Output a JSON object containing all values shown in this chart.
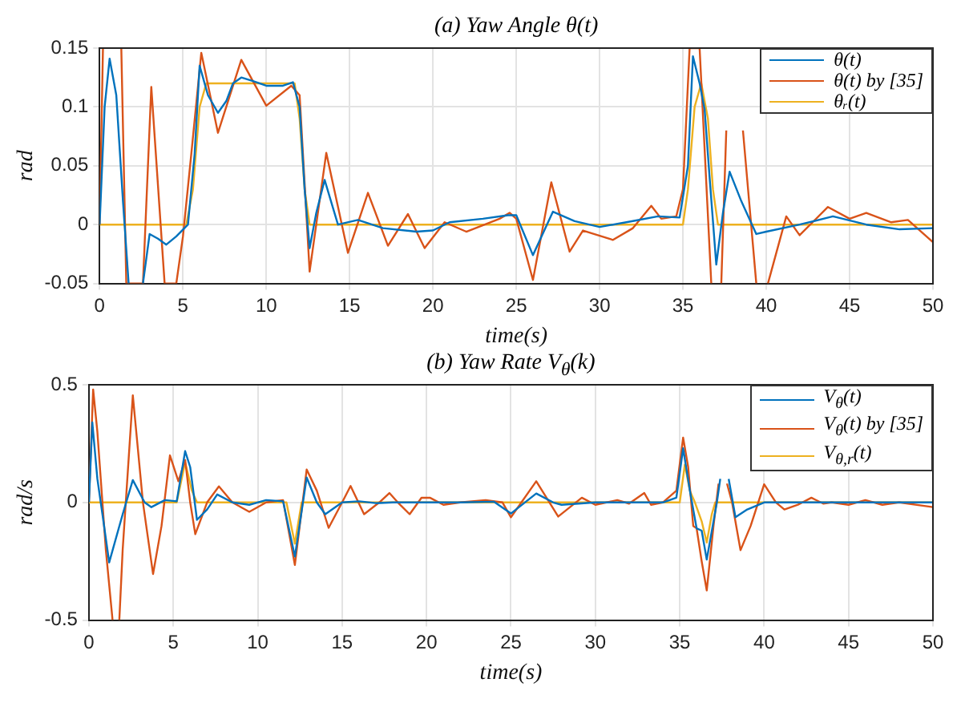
{
  "chart_data": [
    {
      "type": "line",
      "title": "(a) Yaw Angle θ(t)",
      "xlabel": "time(s)",
      "ylabel": "rad",
      "xlim": [
        0,
        50
      ],
      "xticks": [
        0,
        5,
        10,
        15,
        20,
        25,
        30,
        35,
        40,
        45,
        50
      ],
      "ylim": [
        -0.05,
        0.15
      ],
      "yticks": [
        -0.05,
        0,
        0.05,
        0.1,
        0.15
      ],
      "grid": true,
      "legend": "top right",
      "series": [
        {
          "name": "θ(t)",
          "color": "#0072bd",
          "x": [
            0,
            0.3,
            0.6,
            1.0,
            1.4,
            1.74,
            2.0,
            2.6,
            3.0,
            3.5,
            4.0,
            4.6,
            5.3,
            5.7,
            6.0,
            6.5,
            7.1,
            7.6,
            8.0,
            8.5,
            9.2,
            10.0,
            11.0,
            11.6,
            12.0,
            12.3,
            12.6,
            13.0,
            13.5,
            14.3,
            15.5,
            17.0,
            19.0,
            20.0,
            21.0,
            23.0,
            24.5,
            25.0,
            26.0,
            27.2,
            28.5,
            30.0,
            32.0,
            33.5,
            34.8,
            35.3,
            35.6,
            36.0,
            36.3,
            36.6,
            37.0,
            37.4,
            37.8,
            38.5,
            39.4,
            40.0,
            42.0,
            44.0,
            46.0,
            48.0,
            50.0
          ],
          "values": [
            0,
            0.1,
            0.141,
            0.11,
            0.02,
            -0.05,
            null,
            -0.05,
            -0.008,
            -0.012,
            -0.017,
            -0.01,
            0,
            0.06,
            0.135,
            0.11,
            0.095,
            0.105,
            0.12,
            0.125,
            0.122,
            0.118,
            0.118,
            0.121,
            0.1,
            0.03,
            -0.02,
            0.01,
            0.038,
            0,
            0.004,
            -0.003,
            -0.006,
            -0.005,
            0.002,
            0.005,
            0.008,
            0.008,
            -0.026,
            0.011,
            0.003,
            -0.002,
            0.003,
            0.007,
            0.006,
            0.05,
            0.143,
            0.12,
            0.098,
            0.04,
            -0.034,
            0.01,
            0.045,
            0.02,
            -0.008,
            -0.006,
            0,
            0.007,
            0,
            -0.004,
            -0.003
          ]
        },
        {
          "name": "θ(t) by [35]",
          "color": "#d95319",
          "x": [
            0,
            0.2,
            0.25,
            1.3,
            1.6,
            2.6,
            3.1,
            3.9,
            4.6,
            5.0,
            5.5,
            6.1,
            7.1,
            8.5,
            10.0,
            11.5,
            12.0,
            12.6,
            13.6,
            14.9,
            16.1,
            17.3,
            18.5,
            19.5,
            20.7,
            22.0,
            24.0,
            24.6,
            25.0,
            26.0,
            27.1,
            28.2,
            29.0,
            30.8,
            32.0,
            33.1,
            33.7,
            34.6,
            35.0,
            35.4,
            36.0,
            36.7,
            37.0,
            37.3,
            37.6,
            38.0,
            38.6,
            39.4,
            40.0,
            40.1,
            41.2,
            42.0,
            43.7,
            45.0,
            46.0,
            47.5,
            48.5,
            50.0
          ],
          "values": [
            0,
            0.15,
            null,
            0.15,
            -0.05,
            -0.05,
            0.117,
            -0.05,
            -0.05,
            -0.01,
            0.06,
            0.146,
            0.078,
            0.14,
            0.101,
            0.118,
            0.11,
            -0.04,
            0.061,
            -0.024,
            0.027,
            -0.018,
            0.009,
            -0.02,
            0.002,
            -0.006,
            0.005,
            0.01,
            0.005,
            -0.047,
            0.036,
            -0.023,
            -0.005,
            -0.013,
            -0.003,
            0.016,
            0.005,
            0.007,
            0.03,
            0.15,
            0.15,
            -0.05,
            null,
            -0.05,
            0.08,
            null,
            0.08,
            -0.05,
            null,
            -0.05,
            0.007,
            -0.009,
            0.015,
            0.005,
            0.01,
            0.002,
            0.004,
            -0.015
          ]
        },
        {
          "name": "θᵣ(t)",
          "color": "#edb120",
          "x": [
            0,
            5.2,
            5.6,
            6.0,
            6.4,
            11.7,
            12.0,
            12.3,
            12.6,
            35.0,
            35.3,
            35.7,
            36.1,
            36.5,
            36.8,
            37.1,
            50.0
          ],
          "values": [
            0,
            0,
            0.03,
            0.1,
            0.12,
            0.12,
            0.09,
            0.03,
            0,
            0,
            0.03,
            0.1,
            0.12,
            0.09,
            0.03,
            0,
            0
          ]
        }
      ]
    },
    {
      "type": "line",
      "title": "(b) Yaw Rate V$_{θ}$(k)",
      "xlabel": "time(s)",
      "ylabel": "rad/s",
      "xlim": [
        0,
        50
      ],
      "xticks": [
        0,
        5,
        10,
        15,
        20,
        25,
        30,
        35,
        40,
        45,
        50
      ],
      "ylim": [
        -0.5,
        0.5
      ],
      "yticks": [
        -0.5,
        0,
        0.5
      ],
      "grid": true,
      "legend": "top right",
      "series": [
        {
          "name": "V$_{θ}$(t)",
          "color": "#0072bd",
          "x": [
            0,
            0.2,
            0.5,
            0.8,
            1.2,
            2.0,
            2.6,
            3.3,
            3.7,
            4.5,
            5.2,
            5.7,
            6.0,
            6.4,
            7.0,
            7.6,
            8.5,
            9.5,
            10.5,
            11.5,
            12.2,
            12.9,
            13.5,
            14.0,
            15.0,
            16.0,
            17.0,
            18.0,
            20.0,
            22.0,
            24.0,
            25.0,
            26.5,
            27.5,
            28.0,
            30.0,
            32.0,
            34.0,
            34.8,
            35.2,
            35.6,
            36.0,
            36.3,
            36.6,
            37.2,
            37.4,
            37.6,
            37.9,
            38.3,
            39.0,
            40.0,
            42.0,
            50.0
          ],
          "values": [
            0,
            0.34,
            0.1,
            -0.05,
            -0.255,
            -0.05,
            0.095,
            0,
            -0.02,
            0.01,
            0.005,
            0.218,
            0.15,
            -0.074,
            -0.03,
            0.034,
            0,
            -0.01,
            0.01,
            0.005,
            -0.23,
            0.106,
            0,
            -0.05,
            0,
            0.005,
            -0.003,
            0,
            0,
            0,
            0.003,
            -0.047,
            0.038,
            0,
            -0.01,
            0,
            0,
            0,
            0.02,
            0.23,
            0.05,
            -0.11,
            -0.12,
            -0.243,
            0,
            0.1,
            null,
            0.1,
            -0.063,
            -0.03,
            0,
            0,
            0
          ]
        },
        {
          "name": "V$_{θ}$(t) by [35]",
          "color": "#d95319",
          "x": [
            0,
            0.25,
            0.5,
            1.0,
            1.4,
            1.5,
            1.8,
            2.0,
            2.6,
            3.2,
            3.8,
            4.3,
            4.8,
            5.3,
            5.7,
            6.0,
            6.3,
            7.0,
            7.7,
            8.5,
            9.5,
            10.5,
            11.5,
            12.2,
            12.9,
            13.5,
            14.2,
            15.0,
            15.5,
            16.3,
            17.2,
            17.8,
            18.3,
            19.0,
            19.7,
            20.2,
            21.0,
            22.0,
            23.5,
            24.5,
            25.0,
            26.5,
            27.8,
            29.2,
            30.0,
            31.3,
            32.0,
            32.9,
            33.3,
            34.0,
            34.8,
            35.2,
            35.5,
            35.8,
            36.0,
            36.3,
            36.6,
            37.0,
            37.3,
            37.5,
            37.8,
            38.1,
            38.6,
            39.2,
            40.0,
            40.7,
            41.2,
            42.0,
            42.8,
            43.5,
            44.0,
            45.0,
            46.0,
            47.0,
            48.0,
            50.0
          ],
          "values": [
            0,
            0.48,
            0.3,
            -0.2,
            -0.5,
            null,
            -0.5,
            -0.2,
            0.455,
            0,
            -0.304,
            -0.1,
            0.2,
            0.09,
            0.18,
            0,
            -0.135,
            0,
            0.068,
            0,
            -0.04,
            0,
            0.01,
            -0.266,
            0.14,
            0.05,
            -0.108,
            0,
            0.07,
            -0.05,
            0,
            0.04,
            0,
            -0.05,
            0.02,
            0.02,
            -0.01,
            0,
            0.01,
            0,
            -0.063,
            0.09,
            -0.06,
            0.02,
            -0.01,
            0.01,
            -0.005,
            0.04,
            -0.01,
            0,
            0.05,
            0.275,
            0.15,
            -0.1,
            -0.11,
            -0.25,
            -0.374,
            -0.1,
            0.08,
            null,
            0.08,
            0,
            -0.203,
            -0.1,
            0.077,
            0,
            -0.03,
            -0.01,
            0.02,
            -0.005,
            0,
            -0.01,
            0.01,
            -0.01,
            0,
            -0.02
          ]
        },
        {
          "name": "V$_{θ,r}$(t)",
          "color": "#edb120",
          "x": [
            0,
            5.2,
            5.7,
            6.1,
            6.4,
            11.7,
            12.2,
            12.6,
            35.0,
            35.3,
            35.6,
            35.9,
            36.3,
            36.6,
            36.9,
            37.1,
            50.0
          ],
          "values": [
            0,
            0,
            0.17,
            0.05,
            0,
            0,
            -0.175,
            0,
            0,
            0.16,
            0.05,
            0,
            -0.08,
            -0.17,
            -0.05,
            0,
            0
          ]
        }
      ]
    }
  ]
}
